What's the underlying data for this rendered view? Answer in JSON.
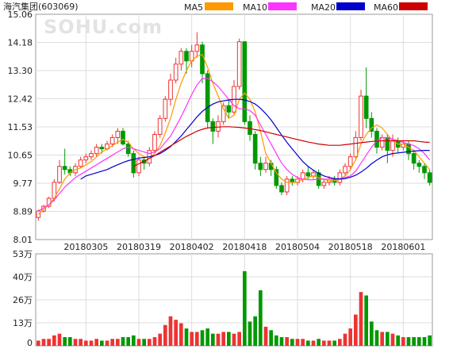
{
  "title": "海汽集团(603069)",
  "watermark": "SOHU.com",
  "legend": [
    {
      "name": "MA5",
      "color": "#ff9900"
    },
    {
      "name": "MA10",
      "color": "#ff33ff"
    },
    {
      "name": "MA20",
      "color": "#0000cc"
    },
    {
      "name": "MA60",
      "color": "#cc0000"
    }
  ],
  "chart_data": [
    {
      "type": "candlestick",
      "price_ticks": [
        "15.06",
        "14.18",
        "13.30",
        "12.42",
        "11.53",
        "10.65",
        "9.77",
        "8.89",
        "8.01"
      ],
      "ylim": [
        8.01,
        15.06
      ],
      "date_labels": [
        {
          "label": "20180305",
          "index": 9
        },
        {
          "label": "20180319",
          "index": 19
        },
        {
          "label": "20180402",
          "index": 29
        },
        {
          "label": "20180418",
          "index": 39
        },
        {
          "label": "20180504",
          "index": 49
        },
        {
          "label": "20180518",
          "index": 59
        },
        {
          "label": "20180601",
          "index": 69
        }
      ],
      "candles": [
        [
          8.7,
          8.9,
          8.6,
          8.95
        ],
        [
          8.9,
          9.05,
          8.85,
          9.1
        ],
        [
          9.05,
          9.3,
          9.0,
          9.35
        ],
        [
          9.3,
          9.8,
          9.2,
          9.9
        ],
        [
          9.8,
          10.3,
          9.75,
          10.5
        ],
        [
          10.3,
          10.2,
          10.05,
          10.85
        ],
        [
          10.2,
          10.1,
          10.0,
          10.3
        ],
        [
          10.1,
          10.3,
          10.0,
          10.4
        ],
        [
          10.3,
          10.5,
          10.25,
          10.6
        ],
        [
          10.5,
          10.6,
          10.4,
          10.7
        ],
        [
          10.6,
          10.7,
          10.5,
          10.8
        ],
        [
          10.7,
          10.9,
          10.6,
          11.0
        ],
        [
          10.9,
          10.85,
          10.7,
          11.0
        ],
        [
          10.85,
          11.0,
          10.8,
          11.1
        ],
        [
          11.0,
          11.2,
          10.9,
          11.3
        ],
        [
          11.2,
          11.4,
          11.0,
          11.5
        ],
        [
          11.4,
          11.0,
          10.95,
          11.5
        ],
        [
          11.0,
          10.7,
          10.6,
          11.1
        ],
        [
          10.7,
          10.1,
          9.95,
          10.8
        ],
        [
          10.1,
          10.5,
          10.0,
          10.6
        ],
        [
          10.5,
          10.4,
          10.2,
          10.6
        ],
        [
          10.4,
          10.8,
          10.3,
          10.9
        ],
        [
          10.8,
          11.3,
          10.7,
          11.4
        ],
        [
          11.3,
          11.8,
          11.2,
          11.9
        ],
        [
          11.8,
          12.4,
          11.7,
          12.5
        ],
        [
          12.4,
          13.0,
          12.2,
          13.2
        ],
        [
          13.0,
          13.5,
          12.9,
          13.7
        ],
        [
          13.5,
          13.9,
          13.3,
          14.0
        ],
        [
          13.9,
          13.6,
          13.2,
          14.0
        ],
        [
          13.6,
          13.9,
          13.4,
          14.1
        ],
        [
          13.9,
          14.1,
          13.7,
          14.5
        ],
        [
          14.1,
          13.2,
          12.9,
          14.2
        ],
        [
          13.2,
          11.7,
          11.5,
          13.3
        ],
        [
          11.7,
          11.4,
          11.0,
          11.8
        ],
        [
          11.4,
          11.7,
          11.2,
          11.9
        ],
        [
          11.7,
          12.2,
          11.6,
          12.3
        ],
        [
          12.2,
          12.0,
          11.8,
          12.4
        ],
        [
          12.0,
          12.8,
          11.9,
          13.0
        ],
        [
          12.8,
          14.2,
          12.7,
          14.3
        ],
        [
          14.2,
          11.7,
          11.6,
          14.2
        ],
        [
          11.7,
          11.3,
          11.1,
          11.9
        ],
        [
          11.3,
          10.4,
          10.2,
          11.4
        ],
        [
          10.4,
          10.2,
          10.0,
          10.6
        ],
        [
          10.2,
          10.4,
          10.1,
          10.6
        ],
        [
          10.4,
          10.2,
          10.0,
          10.5
        ],
        [
          10.2,
          9.7,
          9.6,
          10.3
        ],
        [
          9.7,
          9.5,
          9.4,
          9.8
        ],
        [
          9.5,
          9.9,
          9.4,
          10.0
        ],
        [
          9.9,
          9.8,
          9.7,
          10.0
        ],
        [
          9.8,
          9.9,
          9.7,
          10.0
        ],
        [
          9.9,
          10.1,
          9.8,
          10.2
        ],
        [
          10.1,
          10.0,
          9.9,
          10.3
        ],
        [
          10.0,
          10.1,
          9.9,
          10.2
        ],
        [
          10.1,
          9.7,
          9.6,
          10.2
        ],
        [
          9.7,
          9.8,
          9.6,
          9.9
        ],
        [
          9.8,
          9.9,
          9.7,
          10.0
        ],
        [
          9.9,
          9.8,
          9.7,
          10.0
        ],
        [
          9.8,
          10.1,
          9.7,
          10.2
        ],
        [
          10.1,
          10.3,
          10.0,
          10.4
        ],
        [
          10.3,
          10.6,
          10.2,
          10.7
        ],
        [
          10.6,
          11.2,
          10.5,
          11.4
        ],
        [
          11.2,
          12.5,
          11.1,
          12.7
        ],
        [
          12.5,
          11.8,
          11.5,
          13.4
        ],
        [
          11.8,
          11.4,
          11.2,
          12.0
        ],
        [
          11.4,
          10.9,
          10.7,
          11.5
        ],
        [
          10.9,
          11.2,
          10.8,
          11.3
        ],
        [
          11.2,
          10.8,
          10.4,
          11.3
        ],
        [
          10.8,
          11.1,
          10.6,
          11.3
        ],
        [
          11.1,
          10.9,
          10.7,
          11.2
        ],
        [
          10.9,
          11.0,
          10.8,
          11.1
        ],
        [
          11.0,
          10.7,
          10.5,
          11.1
        ],
        [
          10.7,
          10.4,
          10.2,
          10.8
        ],
        [
          10.4,
          10.3,
          10.1,
          10.5
        ],
        [
          10.3,
          10.1,
          9.9,
          10.4
        ],
        [
          10.1,
          9.8,
          9.7,
          10.2
        ]
      ],
      "ma": {
        "MA5": [
          8.8,
          8.95,
          9.1,
          9.3,
          9.6,
          9.9,
          10.1,
          10.2,
          10.25,
          10.35,
          10.45,
          10.6,
          10.75,
          10.85,
          10.95,
          11.05,
          11.15,
          11.05,
          10.85,
          10.7,
          10.6,
          10.55,
          10.7,
          10.95,
          11.35,
          11.8,
          12.4,
          12.9,
          13.3,
          13.6,
          13.75,
          13.8,
          13.4,
          12.9,
          12.5,
          12.1,
          11.8,
          11.9,
          12.4,
          12.6,
          12.4,
          12.0,
          11.4,
          10.7,
          10.4,
          10.1,
          9.9,
          9.8,
          9.8,
          9.8,
          9.9,
          9.95,
          10.0,
          9.95,
          9.9,
          9.85,
          9.85,
          9.9,
          10.0,
          10.2,
          10.5,
          11.0,
          11.3,
          11.5,
          11.6,
          11.5,
          11.3,
          11.1,
          11.0,
          11.0,
          10.9,
          10.8,
          10.6,
          10.4,
          10.2
        ],
        "MA10": [
          8.9,
          9.0,
          9.1,
          9.25,
          9.45,
          9.65,
          9.8,
          9.95,
          10.05,
          10.15,
          10.25,
          10.35,
          10.45,
          10.55,
          10.65,
          10.75,
          10.85,
          10.9,
          10.85,
          10.8,
          10.75,
          10.7,
          10.75,
          10.85,
          11.05,
          11.25,
          11.55,
          11.85,
          12.2,
          12.55,
          12.85,
          13.05,
          13.05,
          12.95,
          12.8,
          12.6,
          12.4,
          12.2,
          12.1,
          12.1,
          12.05,
          11.9,
          11.6,
          11.3,
          11.0,
          10.7,
          10.4,
          10.2,
          10.05,
          9.95,
          9.9,
          9.88,
          9.88,
          9.9,
          9.9,
          9.9,
          9.9,
          9.92,
          9.95,
          10.0,
          10.15,
          10.4,
          10.65,
          10.9,
          11.1,
          11.2,
          11.2,
          11.15,
          11.1,
          11.05,
          11.0,
          10.95,
          10.85,
          10.7,
          10.5
        ],
        "MA20": [
          null,
          null,
          null,
          null,
          null,
          null,
          null,
          null,
          9.9,
          10.0,
          10.05,
          10.1,
          10.15,
          10.2,
          10.28,
          10.35,
          10.42,
          10.48,
          10.52,
          10.56,
          10.58,
          10.6,
          10.64,
          10.7,
          10.8,
          10.92,
          11.08,
          11.25,
          11.45,
          11.65,
          11.85,
          12.02,
          12.15,
          12.25,
          12.32,
          12.35,
          12.38,
          12.4,
          12.4,
          12.38,
          12.33,
          12.25,
          12.12,
          11.95,
          11.75,
          11.52,
          11.28,
          11.05,
          10.85,
          10.65,
          10.45,
          10.3,
          10.18,
          10.08,
          10.0,
          9.95,
          9.92,
          9.9,
          9.92,
          9.96,
          10.02,
          10.12,
          10.24,
          10.38,
          10.5,
          10.6,
          10.66,
          10.7,
          10.72,
          10.74,
          10.76,
          10.78,
          10.79,
          10.8,
          10.8
        ],
        "MA60": [
          null,
          null,
          null,
          null,
          null,
          null,
          null,
          null,
          null,
          null,
          null,
          null,
          null,
          null,
          null,
          null,
          null,
          null,
          10.3,
          10.38,
          10.46,
          10.55,
          10.64,
          10.74,
          10.84,
          10.94,
          11.04,
          11.14,
          11.24,
          11.32,
          11.4,
          11.46,
          11.5,
          11.52,
          11.53,
          11.54,
          11.54,
          11.53,
          11.52,
          11.5,
          11.48,
          11.45,
          11.42,
          11.38,
          11.34,
          11.3,
          11.26,
          11.22,
          11.18,
          11.14,
          11.1,
          11.06,
          11.03,
          11.0,
          10.98,
          10.96,
          10.96,
          10.96,
          10.98,
          11.0,
          11.02,
          11.04,
          11.06,
          11.08,
          11.09,
          11.1,
          11.1,
          11.1,
          11.1,
          11.1,
          11.1,
          11.1,
          11.08,
          11.06,
          11.05
        ]
      }
    },
    {
      "type": "bar",
      "title": "volume",
      "vol_ticks": [
        "53万",
        "40万",
        "26万",
        "13万",
        "0"
      ],
      "ylim": [
        0,
        53
      ],
      "values": [
        3,
        4,
        4,
        6,
        7,
        5,
        5,
        4,
        4,
        3,
        3,
        4,
        3,
        3,
        4,
        4,
        5,
        5,
        6,
        4,
        4,
        4,
        5,
        7,
        12,
        17,
        15,
        13,
        10,
        8,
        8,
        9,
        10,
        7,
        7,
        8,
        8,
        7,
        8,
        43,
        14,
        17,
        32,
        11,
        9,
        6,
        5,
        5,
        4,
        4,
        4,
        3,
        3,
        4,
        3,
        3,
        3,
        4,
        7,
        10,
        18,
        31,
        29,
        14,
        9,
        8,
        8,
        7,
        6,
        5,
        5,
        5,
        5,
        5,
        6
      ]
    }
  ]
}
